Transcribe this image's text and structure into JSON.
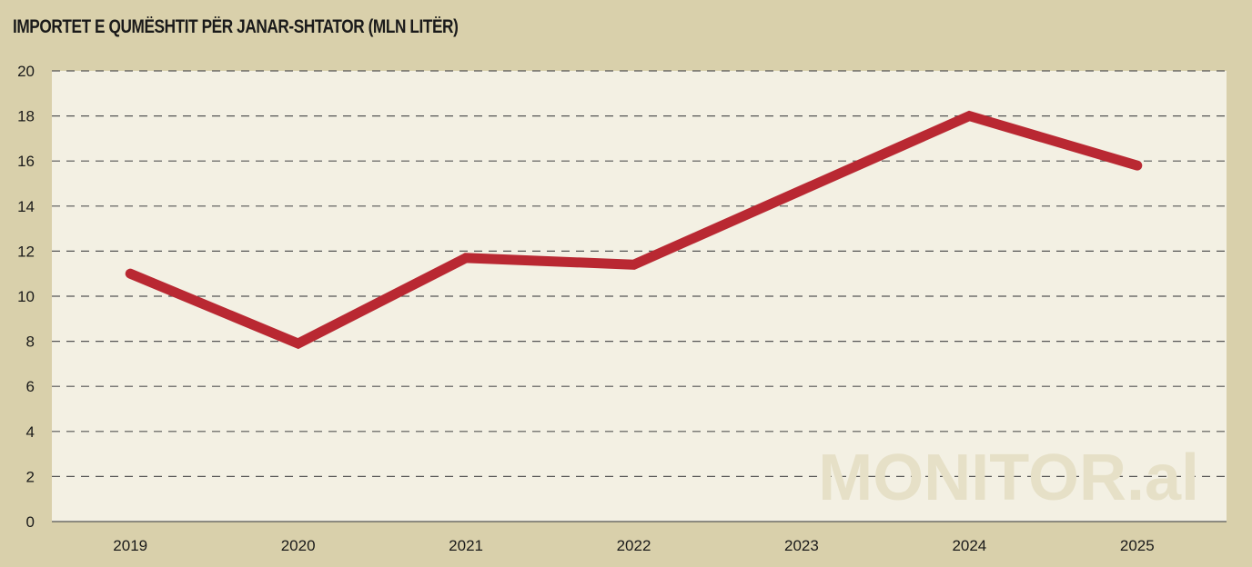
{
  "chart_data": {
    "type": "line",
    "title": "IMPORTET E QUMËSHTIT PËR JANAR-SHTATOR (MLN LITËR)",
    "xlabel": "",
    "ylabel": "",
    "categories": [
      "2019",
      "2020",
      "2021",
      "2022",
      "2023",
      "2024",
      "2025"
    ],
    "series": [
      {
        "name": "Importet e qumështit",
        "values": [
          11.0,
          7.9,
          11.7,
          11.4,
          14.7,
          18.0,
          15.8
        ]
      }
    ],
    "ylim": [
      0,
      20
    ],
    "yticks": [
      0,
      2,
      4,
      6,
      8,
      10,
      12,
      14,
      16,
      18,
      20
    ],
    "grid": true,
    "legend": "none",
    "watermark": "MONITOR.al",
    "colors": {
      "line": "#b92832",
      "plot_bg": "#f3f0e3",
      "page_bg": "#d9d0ab",
      "grid": "#555555"
    }
  }
}
